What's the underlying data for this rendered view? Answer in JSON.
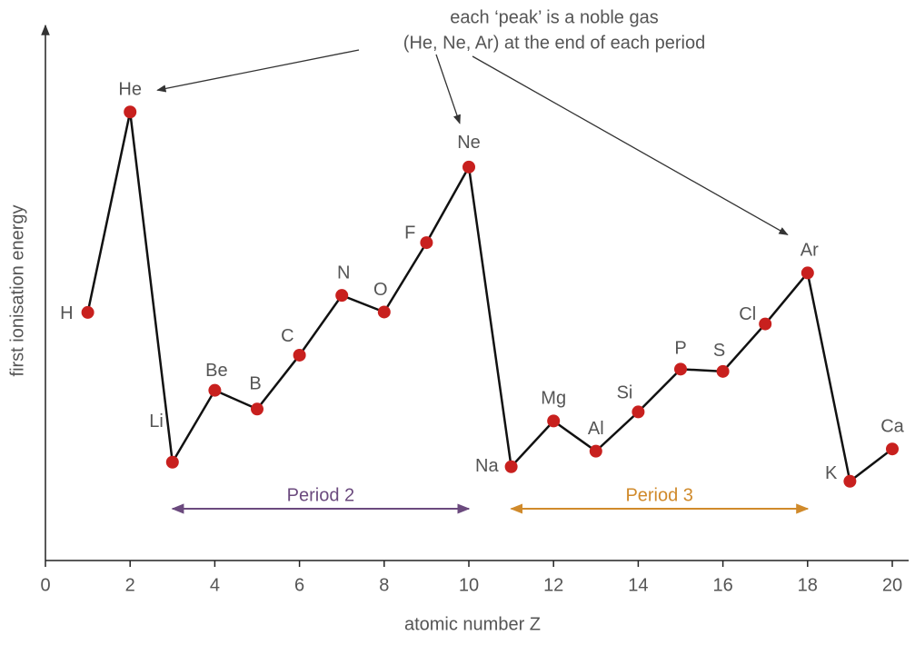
{
  "chart_data": {
    "type": "line",
    "x_label": "atomic number Z",
    "y_label": "first ionisation energy",
    "x": [
      1,
      2,
      3,
      4,
      5,
      6,
      7,
      8,
      9,
      10,
      11,
      12,
      13,
      14,
      15,
      16,
      17,
      18,
      19,
      20
    ],
    "labels": [
      "H",
      "He",
      "Li",
      "Be",
      "B",
      "C",
      "N",
      "O",
      "F",
      "Ne",
      "Na",
      "Mg",
      "Al",
      "Si",
      "P",
      "S",
      "Cl",
      "Ar",
      "K",
      "Ca"
    ],
    "values": [
      1312,
      2372,
      520,
      900,
      801,
      1086,
      1402,
      1314,
      1681,
      2081,
      496,
      738,
      578,
      786,
      1012,
      1000,
      1251,
      1521,
      419,
      590
    ],
    "color": "#c8201e",
    "line_color": "#111111",
    "xlim": [
      0,
      20
    ],
    "xticks": [
      0,
      2,
      4,
      6,
      8,
      10,
      12,
      14,
      16,
      18,
      20
    ],
    "ylim": [
      0,
      2820
    ],
    "annotation": [
      "each ‘peak’ is a noble gas",
      "(He, Ne, Ar) at the end of each period"
    ],
    "periods": [
      {
        "label": "Period 2",
        "start": 3,
        "end": 10,
        "color": "#6b4a7e"
      },
      {
        "label": "Period 3",
        "start": 11,
        "end": 18,
        "color": "#d08a2b"
      }
    ]
  }
}
